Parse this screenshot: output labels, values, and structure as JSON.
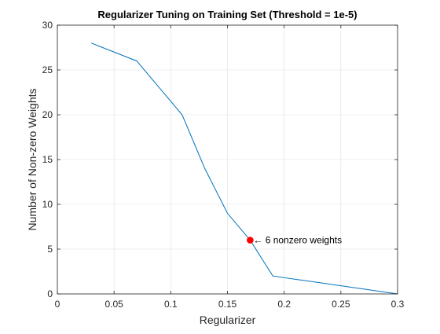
{
  "chart_data": {
    "type": "line",
    "title": "Regularizer Tuning on Training Set (Threshold = 1e-5)",
    "xlabel": "Regularizer",
    "ylabel": "Number of Non-zero Weights",
    "xlim": [
      0,
      0.3
    ],
    "ylim": [
      0,
      30
    ],
    "x_ticks": [
      0,
      0.05,
      0.1,
      0.15,
      0.2,
      0.25,
      0.3
    ],
    "x_tick_labels": [
      "0",
      "0.05",
      "0.1",
      "0.15",
      "0.2",
      "0.25",
      "0.3"
    ],
    "y_ticks": [
      0,
      5,
      10,
      15,
      20,
      25,
      30
    ],
    "y_tick_labels": [
      "0",
      "5",
      "10",
      "15",
      "20",
      "25",
      "30"
    ],
    "grid": true,
    "series": [
      {
        "x": [
          0.03,
          0.07,
          0.11,
          0.13,
          0.15,
          0.17,
          0.19,
          0.3
        ],
        "y": [
          28,
          26,
          20,
          14,
          9,
          6,
          2,
          0
        ],
        "color": "#0072BD"
      }
    ],
    "highlight": {
      "x": 0.17,
      "y": 6,
      "color": "#FF0000",
      "label": "← 6 nonzero weights"
    }
  }
}
